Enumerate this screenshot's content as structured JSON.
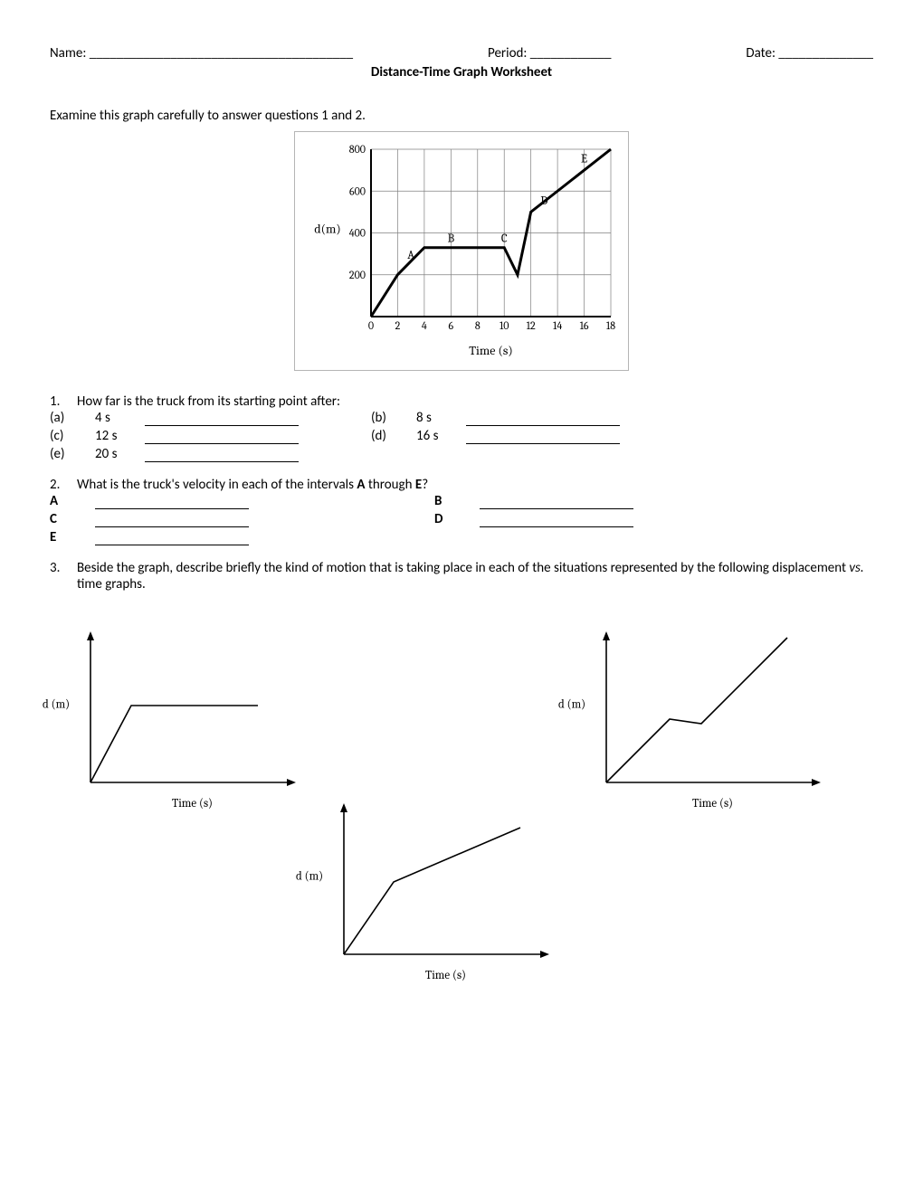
{
  "header": {
    "name_label": "Name: _______________________________________",
    "period_label": "Period: ____________",
    "date_label": "Date: ______________"
  },
  "title": "Distance-Time Graph Worksheet",
  "intro": "Examine this graph carefully to answer questions 1 and 2.",
  "main_chart": {
    "y_label": "d(m)",
    "x_label": "Time (s)",
    "x_ticks": [
      "0",
      "2",
      "4",
      "6",
      "8",
      "10",
      "12",
      "14",
      "16",
      "18"
    ],
    "y_ticks": [
      "200",
      "400",
      "600",
      "800"
    ],
    "xlim": [
      0,
      18
    ],
    "ylim": [
      0,
      800
    ],
    "line_color": "#000000",
    "line_width": 3,
    "grid_color": "#808080",
    "bg": "#ffffff",
    "axis_tick_fontsize": 12,
    "label_fontsize": 14,
    "points": [
      [
        0,
        0
      ],
      [
        2,
        200
      ],
      [
        4,
        330
      ],
      [
        6,
        330
      ],
      [
        10,
        330
      ],
      [
        11,
        200
      ],
      [
        12,
        500
      ],
      [
        14,
        600
      ],
      [
        18,
        800
      ]
    ],
    "markers": [
      {
        "label": "A",
        "x": 3,
        "y": 260
      },
      {
        "label": "B",
        "x": 6,
        "y": 340
      },
      {
        "label": "C",
        "x": 10,
        "y": 340
      },
      {
        "label": "D",
        "x": 13,
        "y": 520
      },
      {
        "label": "E",
        "x": 16,
        "y": 720
      }
    ]
  },
  "q1": {
    "text": "How far is the truck from its starting point after:",
    "a": "(a)",
    "b": "(b)",
    "c": "(c)",
    "d": "(d)",
    "e": "(e)",
    "av": "4 s",
    "bv": "8 s",
    "cv": "12 s",
    "dv": "16 s",
    "ev": "20 s"
  },
  "q2": {
    "text_pre": "What is the truck's velocity in each of the intervals ",
    "text_mid1": "A",
    "text_mid2": " through ",
    "text_mid3": "E",
    "text_post": "?",
    "A": "A",
    "B": "B",
    "C": "C",
    "D": "D",
    "E": "E"
  },
  "q3": {
    "text_pre": "Beside the graph, describe briefly the kind of motion that is taking place in each of the situations represented by the following displacement ",
    "text_it": "vs.",
    "text_post": " time graphs."
  },
  "mini": {
    "y_label": "d (m)",
    "x_label": "Time (s)",
    "axis_color": "#000000",
    "line_color": "#000000",
    "g1_points": [
      [
        0,
        0
      ],
      [
        45,
        85
      ],
      [
        185,
        85
      ]
    ],
    "g2_points": [
      [
        0,
        0
      ],
      [
        70,
        70
      ],
      [
        105,
        65
      ],
      [
        200,
        160
      ]
    ],
    "g3_points": [
      [
        0,
        0
      ],
      [
        55,
        80
      ],
      [
        195,
        140
      ]
    ]
  }
}
